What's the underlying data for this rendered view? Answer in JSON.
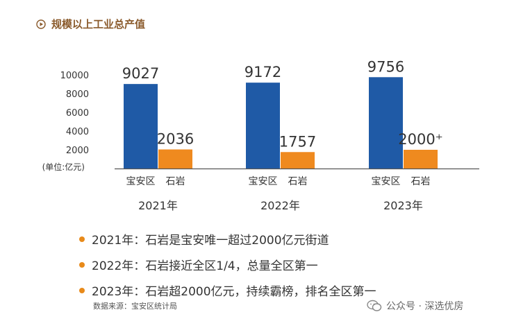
{
  "title": "规模以上工业总产值",
  "icons": {
    "title_icon": "play-circle-icon",
    "watermark_icon": "wechat-icon"
  },
  "colors": {
    "baoan": "#1f5aa6",
    "shiyan": "#ef8a1f",
    "title": "#8a5a2b",
    "bullet": "#e88a1a"
  },
  "chart_data": {
    "type": "bar",
    "unit_label": "(单位:亿元)",
    "ylim": [
      0,
      10000
    ],
    "yticks": [
      2000,
      4000,
      6000,
      8000,
      10000
    ],
    "grid": false,
    "groups": [
      {
        "year": "2021年",
        "bars": [
          {
            "name": "宝安区",
            "value": 9027,
            "label": "9027"
          },
          {
            "name": "石岩",
            "value": 2036,
            "label": "2036"
          }
        ]
      },
      {
        "year": "2022年",
        "bars": [
          {
            "name": "宝安区",
            "value": 9172,
            "label": "9172"
          },
          {
            "name": "石岩",
            "value": 1757,
            "label": "1757"
          }
        ]
      },
      {
        "year": "2023年",
        "bars": [
          {
            "name": "宝安区",
            "value": 9756,
            "label": "9756"
          },
          {
            "name": "石岩",
            "value": 2000,
            "label": "2000⁺"
          }
        ]
      }
    ]
  },
  "bullets": [
    "2021年：石岩是宝安唯一超过2000亿元街道",
    "2022年：石岩接近全区1/4，总量全区第一",
    "2023年：石岩超2000亿元，持续霸榜，排名全区第一"
  ],
  "source": "数据来源：宝安区统计局",
  "watermark": "公众号 · 深选优房"
}
